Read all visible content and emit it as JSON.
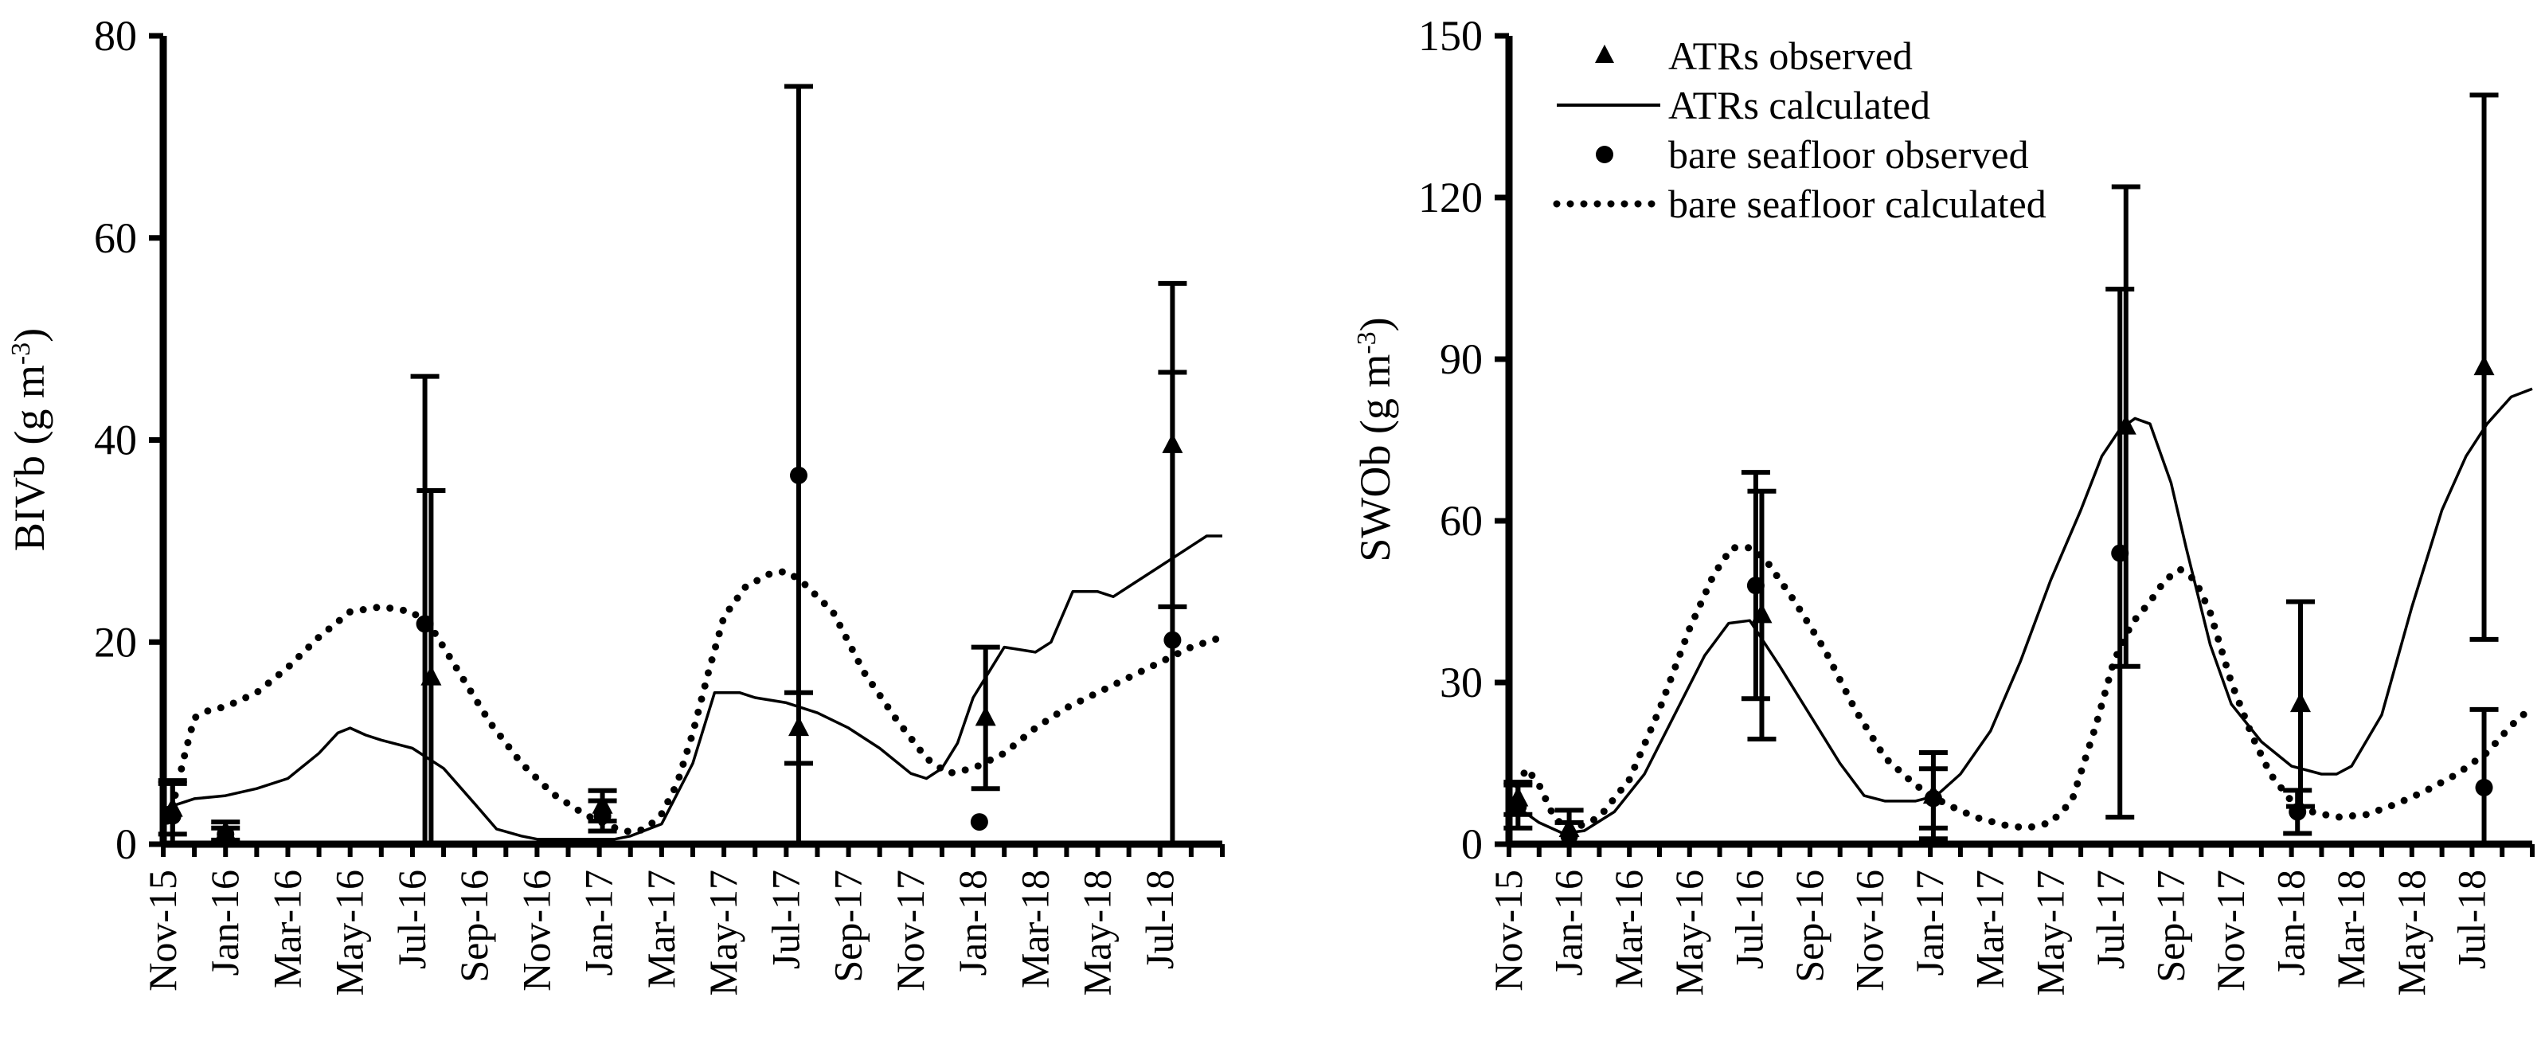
{
  "chart_data": [
    {
      "type": "line",
      "ylabel": "BIVb (g m",
      "ylabel_sup": "-3",
      "ylabel_end": ")",
      "ylim": [
        0,
        80
      ],
      "yticks": [
        0,
        20,
        40,
        60,
        80
      ],
      "x_range_months": [
        0,
        34
      ],
      "xticks": [
        {
          "m": 0,
          "label": "Nov-15"
        },
        {
          "m": 2,
          "label": "Jan-16"
        },
        {
          "m": 4,
          "label": "Mar-16"
        },
        {
          "m": 6,
          "label": "May-16"
        },
        {
          "m": 8,
          "label": "Jul-16"
        },
        {
          "m": 10,
          "label": "Sep-16"
        },
        {
          "m": 12,
          "label": "Nov-16"
        },
        {
          "m": 14,
          "label": "Jan-17"
        },
        {
          "m": 16,
          "label": "Mar-17"
        },
        {
          "m": 18,
          "label": "May-17"
        },
        {
          "m": 20,
          "label": "Jul-17"
        },
        {
          "m": 22,
          "label": "Sep-17"
        },
        {
          "m": 24,
          "label": "Nov-17"
        },
        {
          "m": 26,
          "label": "Jan-18"
        },
        {
          "m": 28,
          "label": "Mar-18"
        },
        {
          "m": 30,
          "label": "May-18"
        },
        {
          "m": 32,
          "label": "Jul-18"
        }
      ],
      "series": [
        {
          "name": "ATRs calculated",
          "style": "solid",
          "points": [
            [
              0,
              3.5
            ],
            [
              0.5,
              4.0
            ],
            [
              1,
              4.5
            ],
            [
              2,
              4.8
            ],
            [
              3,
              5.5
            ],
            [
              4,
              6.5
            ],
            [
              5,
              9
            ],
            [
              5.6,
              11
            ],
            [
              6,
              11.5
            ],
            [
              6.5,
              10.8
            ],
            [
              7,
              10.3
            ],
            [
              8,
              9.5
            ],
            [
              9,
              7.5
            ],
            [
              10,
              4
            ],
            [
              10.7,
              1.5
            ],
            [
              11.5,
              0.8
            ],
            [
              12,
              0.5
            ],
            [
              13,
              0.5
            ],
            [
              14,
              0.5
            ],
            [
              14.5,
              0.5
            ],
            [
              15,
              0.8
            ],
            [
              16,
              2
            ],
            [
              17,
              8
            ],
            [
              17.7,
              15
            ],
            [
              18.5,
              15
            ],
            [
              19,
              14.5
            ],
            [
              20,
              14
            ],
            [
              21,
              13
            ],
            [
              22,
              11.5
            ],
            [
              23,
              9.5
            ],
            [
              24,
              7
            ],
            [
              24.5,
              6.5
            ],
            [
              25,
              7.5
            ],
            [
              25.5,
              10
            ],
            [
              26,
              14.5
            ],
            [
              26.5,
              17
            ],
            [
              27,
              19.5
            ],
            [
              28,
              19
            ],
            [
              28.5,
              20
            ],
            [
              29.2,
              25
            ],
            [
              30,
              25
            ],
            [
              30.5,
              24.5
            ],
            [
              31,
              25.5
            ],
            [
              32,
              27.5
            ],
            [
              33,
              29.5
            ],
            [
              33.5,
              30.5
            ],
            [
              34,
              30.5
            ]
          ]
        },
        {
          "name": "bare seafloor calculated",
          "style": "dotted",
          "points": [
            [
              0,
              1
            ],
            [
              0.4,
              5
            ],
            [
              0.7,
              9
            ],
            [
              1,
              12.5
            ],
            [
              1.5,
              13.3
            ],
            [
              2,
              13.6
            ],
            [
              3,
              15
            ],
            [
              4,
              17.5
            ],
            [
              5,
              20.5
            ],
            [
              6,
              23
            ],
            [
              7,
              23.5
            ],
            [
              8,
              23
            ],
            [
              8.7,
              21
            ],
            [
              9.5,
              17
            ],
            [
              10.5,
              12
            ],
            [
              11.5,
              8
            ],
            [
              12.5,
              5
            ],
            [
              13.5,
              3
            ],
            [
              14.3,
              1.8
            ],
            [
              15,
              1.2
            ],
            [
              15.5,
              1.5
            ],
            [
              16,
              3
            ],
            [
              16.5,
              6
            ],
            [
              17,
              11
            ],
            [
              17.5,
              17
            ],
            [
              18,
              22.5
            ],
            [
              18.7,
              25.5
            ],
            [
              19.5,
              26.8
            ],
            [
              20,
              27
            ],
            [
              20.5,
              26
            ],
            [
              21.5,
              23
            ],
            [
              22.5,
              17
            ],
            [
              23.5,
              12.5
            ],
            [
              24.5,
              8.5
            ],
            [
              25.2,
              7
            ],
            [
              26,
              7.5
            ],
            [
              27,
              9
            ],
            [
              28,
              11.5
            ],
            [
              29,
              13.5
            ],
            [
              30,
              15
            ],
            [
              31,
              16.5
            ],
            [
              32,
              18
            ],
            [
              33,
              19.5
            ],
            [
              34,
              20.5
            ]
          ]
        },
        {
          "name": "ATRs observed",
          "marker": "triangle",
          "obs": [
            [
              0.3,
              3.5,
              2.5
            ],
            [
              2.0,
              1.2,
              1.0
            ],
            [
              8.6,
              16.5,
              18.5
            ],
            [
              14.1,
              3.8,
              1.5
            ],
            [
              20.4,
              11.5,
              3.5
            ],
            [
              26.4,
              12.5,
              7.0
            ],
            [
              32.4,
              39.5,
              16.0
            ]
          ]
        },
        {
          "name": "bare seafloor observed",
          "marker": "circle",
          "obs": [
            [
              0.3,
              2.8,
              3.5
            ],
            [
              2.0,
              1.0,
              0.6
            ],
            [
              8.4,
              21.8,
              24.5
            ],
            [
              14.1,
              2.8,
              1.5
            ],
            [
              20.4,
              36.5,
              38.5
            ],
            [
              26.2,
              2.2,
              0
            ],
            [
              32.4,
              20.2,
              26.5
            ]
          ]
        }
      ]
    },
    {
      "type": "line",
      "ylabel": "SWOb (g m",
      "ylabel_sup": "-3",
      "ylabel_end": ")",
      "ylim": [
        0,
        150
      ],
      "yticks": [
        0,
        30,
        60,
        90,
        120,
        150
      ],
      "x_range_months": [
        0,
        34
      ],
      "xticks": [
        {
          "m": 0,
          "label": "Nov-15"
        },
        {
          "m": 2,
          "label": "Jan-16"
        },
        {
          "m": 4,
          "label": "Mar-16"
        },
        {
          "m": 6,
          "label": "May-16"
        },
        {
          "m": 8,
          "label": "Jul-16"
        },
        {
          "m": 10,
          "label": "Sep-16"
        },
        {
          "m": 12,
          "label": "Nov-16"
        },
        {
          "m": 14,
          "label": "Jan-17"
        },
        {
          "m": 16,
          "label": "Mar-17"
        },
        {
          "m": 18,
          "label": "May-17"
        },
        {
          "m": 20,
          "label": "Jul-17"
        },
        {
          "m": 22,
          "label": "Sep-17"
        },
        {
          "m": 24,
          "label": "Nov-17"
        },
        {
          "m": 26,
          "label": "Jan-18"
        },
        {
          "m": 28,
          "label": "Mar-18"
        },
        {
          "m": 30,
          "label": "May-18"
        },
        {
          "m": 32,
          "label": "Jul-18"
        }
      ],
      "legend": {
        "placement": "top-center",
        "entries": [
          {
            "label": "ATRs observed",
            "marker": "triangle"
          },
          {
            "label": "ATRs calculated",
            "style": "solid"
          },
          {
            "label": "bare seafloor observed",
            "marker": "circle"
          },
          {
            "label": "bare seafloor calculated",
            "style": "dotted"
          }
        ]
      },
      "series": [
        {
          "name": "ATRs calculated",
          "style": "solid",
          "points": [
            [
              0,
              8
            ],
            [
              1,
              4
            ],
            [
              1.8,
              2
            ],
            [
              2.5,
              2.5
            ],
            [
              3.5,
              6
            ],
            [
              4.5,
              13
            ],
            [
              5.5,
              24
            ],
            [
              6.5,
              35
            ],
            [
              7.3,
              41
            ],
            [
              8,
              41.5
            ],
            [
              9,
              33
            ],
            [
              10,
              24
            ],
            [
              11,
              15
            ],
            [
              11.8,
              9
            ],
            [
              12.5,
              8
            ],
            [
              13.5,
              8
            ],
            [
              14.2,
              9
            ],
            [
              15,
              13
            ],
            [
              16,
              21
            ],
            [
              17,
              34
            ],
            [
              18,
              49
            ],
            [
              19,
              62
            ],
            [
              19.7,
              72
            ],
            [
              20.3,
              77
            ],
            [
              20.8,
              79
            ],
            [
              21.3,
              78
            ],
            [
              22,
              67
            ],
            [
              22.5,
              55
            ],
            [
              23.3,
              37
            ],
            [
              24,
              26
            ],
            [
              25,
              19
            ],
            [
              26,
              14.5
            ],
            [
              27,
              13
            ],
            [
              27.5,
              13
            ],
            [
              28,
              14.5
            ],
            [
              29,
              24
            ],
            [
              30,
              44
            ],
            [
              31,
              62
            ],
            [
              31.8,
              72
            ],
            [
              32.5,
              78
            ],
            [
              33.3,
              83
            ],
            [
              34,
              84.5
            ]
          ]
        },
        {
          "name": "bare seafloor calculated",
          "style": "dotted",
          "points": [
            [
              0,
              9
            ],
            [
              0.6,
              14
            ],
            [
              1,
              11
            ],
            [
              1.5,
              5
            ],
            [
              2,
              2.5
            ],
            [
              3,
              5
            ],
            [
              4,
              12
            ],
            [
              5,
              25
            ],
            [
              6,
              40
            ],
            [
              6.8,
              50
            ],
            [
              7.4,
              55
            ],
            [
              8,
              55
            ],
            [
              8.5,
              53
            ],
            [
              9.5,
              45
            ],
            [
              10.5,
              36
            ],
            [
              11.5,
              25
            ],
            [
              12.5,
              16
            ],
            [
              13.5,
              11
            ],
            [
              14.5,
              7.5
            ],
            [
              15.5,
              5
            ],
            [
              16.5,
              3.5
            ],
            [
              17.2,
              3
            ],
            [
              18,
              4
            ],
            [
              18.7,
              8
            ],
            [
              19.5,
              22
            ],
            [
              20.1,
              34
            ],
            [
              20.7,
              41
            ],
            [
              21.3,
              45
            ],
            [
              21.8,
              49
            ],
            [
              22.3,
              51
            ],
            [
              22.8,
              49
            ],
            [
              23.3,
              43
            ],
            [
              24,
              30
            ],
            [
              24.7,
              20
            ],
            [
              25.3,
              13
            ],
            [
              26,
              8
            ],
            [
              26.7,
              6
            ],
            [
              27.5,
              5
            ],
            [
              28.5,
              5.5
            ],
            [
              29.5,
              7.5
            ],
            [
              30.5,
              10
            ],
            [
              31.5,
              13
            ],
            [
              32.5,
              17
            ],
            [
              33.3,
              22
            ],
            [
              34,
              25.5
            ]
          ]
        },
        {
          "name": "ATRs observed",
          "marker": "triangle",
          "obs": [
            [
              0.3,
              8.5,
              3.0
            ],
            [
              2.0,
              2.8,
              3.5
            ],
            [
              8.4,
              42.5,
              23.0
            ],
            [
              14.1,
              9.0,
              8.0
            ],
            [
              20.5,
              77.5,
              44.5
            ],
            [
              26.3,
              26.0,
              19.0
            ],
            [
              32.4,
              88.5,
              50.5
            ]
          ]
        },
        {
          "name": "bare seafloor observed",
          "marker": "circle",
          "obs": [
            [
              0.3,
              7.0,
              4.0
            ],
            [
              2.0,
              1.5,
              2.5
            ],
            [
              8.2,
              48.0,
              21.0
            ],
            [
              14.1,
              8.5,
              5.5
            ],
            [
              20.3,
              54.0,
              49.0
            ],
            [
              26.2,
              6.0,
              4.0
            ],
            [
              32.4,
              10.5,
              14.5
            ]
          ]
        }
      ]
    }
  ]
}
